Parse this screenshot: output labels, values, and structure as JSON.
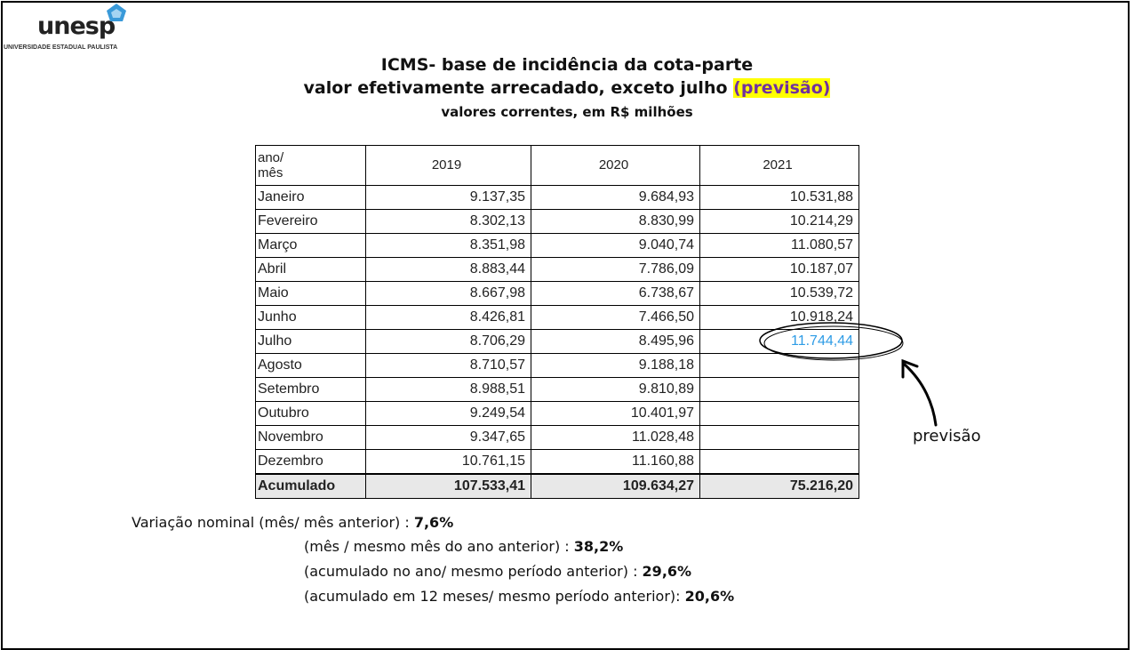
{
  "header": {
    "logo": "unesp",
    "logo_subtitle": "UNIVERSIDADE ESTADUAL PAULISTA"
  },
  "title": {
    "line1": "ICMS- base de incidência da cota-parte",
    "line2": "valor efetivamente arrecadado, exceto julho",
    "line2_highlight": "(previsão)",
    "line3": "valores correntes, em R$ milhões"
  },
  "table": {
    "header": [
      "ano/\nmês",
      "2019",
      "2020",
      "2021"
    ],
    "rows": [
      [
        "Janeiro",
        "9.137,35",
        "9.684,93",
        "10.531,88"
      ],
      [
        "Fevereiro",
        "8.302,13",
        "8.830,99",
        "10.214,29"
      ],
      [
        "Março",
        "8.351,98",
        "9.040,74",
        "11.080,57"
      ],
      [
        "Abril",
        "8.883,44",
        "7.786,09",
        "10.187,07"
      ],
      [
        "Maio",
        "8.667,98",
        "6.738,67",
        "10.539,72"
      ],
      [
        "Junho",
        "8.426,81",
        "7.466,50",
        "10.918,24"
      ],
      [
        "Julho",
        "8.706,29",
        "8.495,96",
        "11.744,44"
      ],
      [
        "Agosto",
        "8.710,57",
        "9.188,18"
      ],
      [
        "Setembro",
        "8.988,51",
        "9.810,89"
      ],
      [
        "Outubro",
        "9.249,54",
        "10.401,97"
      ],
      [
        "Novembro",
        "9.347,65",
        "11.028,48"
      ],
      [
        "Dezembro",
        "10.761,15",
        "11.160,88"
      ]
    ],
    "total": [
      "Acumulado",
      "107.533,41",
      "109.634,27",
      "75.216,20"
    ]
  },
  "annotation": "previsão",
  "notes": [
    {
      "label": "Variação nominal (mês/ mês anterior) : ",
      "value": "7,6%"
    },
    {
      "label": "(mês / mesmo mês do ano anterior) : ",
      "value": "38,2%"
    },
    {
      "label": "(acumulado no ano/ mesmo período anterior) : ",
      "value": "29,6%"
    },
    {
      "label": "(acumulado em 12 meses/ mesmo período anterior): ",
      "value": "20,6%"
    }
  ]
}
